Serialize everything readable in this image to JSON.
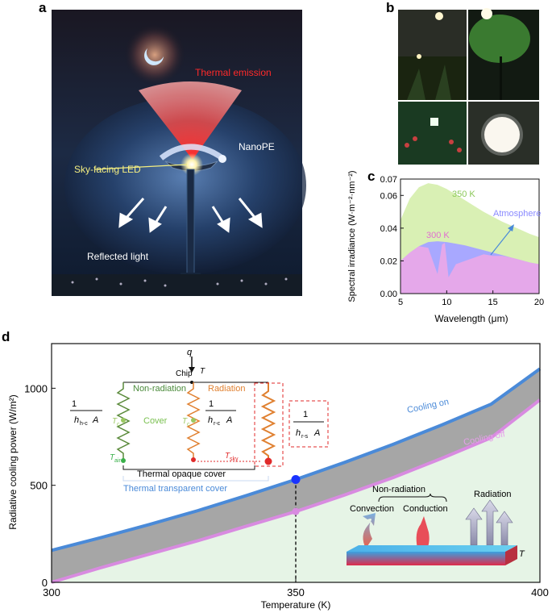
{
  "panels": {
    "a": {
      "letter": "a",
      "labels": {
        "thermal_emission": "Thermal emission",
        "nanope": "NanoPE",
        "sky_facing_led": "Sky-facing LED",
        "reflected_light": "Reflected light"
      },
      "colors": {
        "thermal": "#e8322a",
        "nanope": "#cfe3ff"
      }
    },
    "b": {
      "letter": "b",
      "photo_count": 4
    },
    "c": {
      "letter": "c"
    },
    "d": {
      "letter": "d",
      "inset_circuit": {
        "q": "q",
        "chip": "Chip",
        "T": "T",
        "non_radiation": "Non-radiation",
        "radiation": "Radiation",
        "cover": "Cover",
        "tc": "T",
        "tc_sub": "c",
        "tair": "T",
        "tair_sub": "air",
        "tsky": "T",
        "tsky_sub": "sky",
        "r1_num": "1",
        "r1_den": "h",
        "r1_den_sub": "h-c",
        "r1_den_tail": "A",
        "r2_num": "1",
        "r2_den": "h",
        "r2_den_sub": "r-c",
        "r2_den_tail": "A",
        "r3_num": "1",
        "r3_den": "h",
        "r3_den_sub": "r-s",
        "r3_den_tail": "A",
        "opaque": "Thermal opaque cover",
        "transparent": "Thermal transparent cover"
      },
      "inset_slab": {
        "non_radiation": "Non-radiation",
        "convection": "Convection",
        "conduction": "Conduction",
        "radiation": "Radiation",
        "T": "T"
      }
    }
  },
  "chart_data": [
    {
      "type": "area",
      "panel": "c",
      "xlabel": "Wavelength (μm)",
      "ylabel": "Spectral irradiance (W·m⁻²·nm⁻²)",
      "xlim": [
        5,
        20
      ],
      "ylim": [
        0,
        0.07
      ],
      "xticks": [
        5,
        10,
        15,
        20
      ],
      "yticks": [
        "0.00",
        "0.02",
        "0.04",
        "0.06",
        "0.07"
      ],
      "grid": false,
      "annotations": [
        "350 K",
        "300 K",
        "Atmosphere"
      ],
      "series": [
        {
          "name": "350 K",
          "color": "#d9f0b4",
          "x": [
            5,
            6,
            7,
            8,
            9,
            10,
            11,
            12,
            13,
            14,
            15,
            16,
            17,
            18,
            19,
            20
          ],
          "y": [
            0.045,
            0.058,
            0.065,
            0.0675,
            0.0665,
            0.064,
            0.0605,
            0.057,
            0.0535,
            0.05,
            0.047,
            0.044,
            0.0415,
            0.039,
            0.0365,
            0.0345
          ]
        },
        {
          "name": "300 K",
          "color": "#a8a8ff",
          "x": [
            5,
            6,
            7,
            8,
            9,
            10,
            11,
            12,
            13,
            14,
            15,
            16,
            17,
            18,
            19,
            20
          ],
          "y": [
            0.02,
            0.025,
            0.029,
            0.0315,
            0.032,
            0.0315,
            0.0305,
            0.0295,
            0.028,
            0.0265,
            0.025,
            0.0235,
            0.022,
            0.0205,
            0.019,
            0.018
          ]
        },
        {
          "name": "Atmosphere",
          "color": "#f0a8e6",
          "x": [
            5,
            6,
            7,
            8,
            8.5,
            9,
            9.5,
            9.8,
            10.2,
            11,
            12,
            13,
            14,
            15,
            16,
            17,
            18,
            19,
            20
          ],
          "y": [
            0.02,
            0.025,
            0.029,
            0.028,
            0.02,
            0.012,
            0.03,
            0.031,
            0.01,
            0.018,
            0.02,
            0.022,
            0.024,
            0.023,
            0.023,
            0.022,
            0.0205,
            0.019,
            0.018
          ]
        }
      ]
    },
    {
      "type": "line",
      "panel": "d",
      "xlabel": "Temperature (K)",
      "ylabel": "Radiative cooling power (W/m²)",
      "xlim": [
        300,
        400
      ],
      "ylim": [
        0,
        1230
      ],
      "xticks": [
        300,
        350,
        400
      ],
      "yticks": [
        0,
        500,
        1000
      ],
      "grid": false,
      "series": [
        {
          "name": "Cooling on",
          "color": "#4a8ad8",
          "x": [
            300,
            310,
            320,
            330,
            340,
            350,
            360,
            370,
            380,
            390,
            400
          ],
          "y": [
            165,
            230,
            298,
            370,
            448,
            530,
            618,
            712,
            812,
            918,
            1100
          ]
        },
        {
          "name": "Cooling off",
          "color": "#d88be0",
          "x": [
            300,
            310,
            320,
            330,
            340,
            350,
            360,
            370,
            380,
            390,
            400
          ],
          "y": [
            0,
            75,
            145,
            215,
            290,
            365,
            450,
            540,
            640,
            745,
            940
          ]
        }
      ],
      "markers": [
        {
          "x": 350,
          "y": 530,
          "color": "#1a33ff"
        },
        {
          "x": 350,
          "y": 365,
          "color": "#d88be0"
        }
      ]
    }
  ]
}
